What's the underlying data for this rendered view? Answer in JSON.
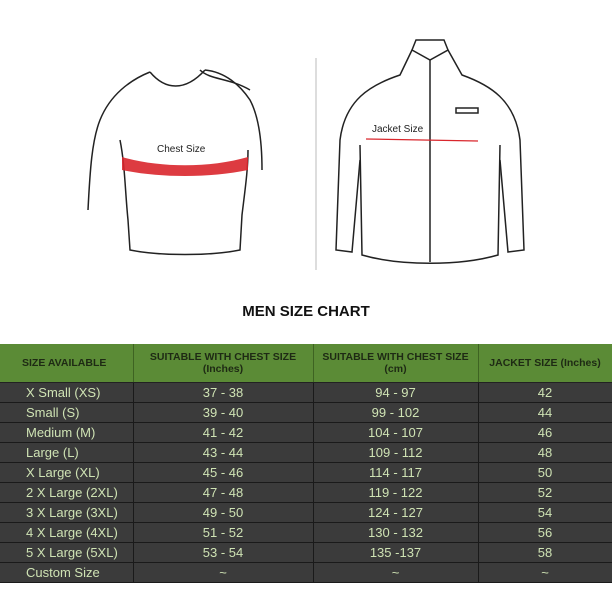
{
  "illustration": {
    "chest_label": "Chest Size",
    "jacket_label": "Jacket Size",
    "accent": "#d9262c"
  },
  "title": "MEN SIZE CHART",
  "table": {
    "headers": [
      [
        "SIZE AVAILABLE",
        ""
      ],
      [
        "SUITABLE WITH CHEST SIZE",
        "(Inches)"
      ],
      [
        "SUITABLE WITH CHEST SIZE",
        "(cm)"
      ],
      [
        "JACKET SIZE (Inches)",
        ""
      ]
    ],
    "rows": [
      [
        "X Small (XS)",
        "37 - 38",
        "94 - 97",
        "42"
      ],
      [
        "Small (S)",
        "39 - 40",
        "99 - 102",
        "44"
      ],
      [
        "Medium (M)",
        "41 - 42",
        "104 - 107",
        "46"
      ],
      [
        "Large (L)",
        "43 - 44",
        "109 - 112",
        "48"
      ],
      [
        "X Large (XL)",
        "45 - 46",
        "114 - 117",
        "50"
      ],
      [
        "2 X Large (2XL)",
        "47 - 48",
        "119 - 122",
        "52"
      ],
      [
        "3 X Large (3XL)",
        "49 - 50",
        "124 - 127",
        "54"
      ],
      [
        "4 X Large (4XL)",
        "51 - 52",
        "130 - 132",
        "56"
      ],
      [
        "5 X Large (5XL)",
        "53 - 54",
        "135 -137",
        "58"
      ],
      [
        "Custom Size",
        "~",
        "~",
        "~"
      ]
    ],
    "colors": {
      "header_bg": "#5b8b36",
      "row_bg": "#3b3b3b",
      "row_text": "#cfe3b4"
    }
  }
}
